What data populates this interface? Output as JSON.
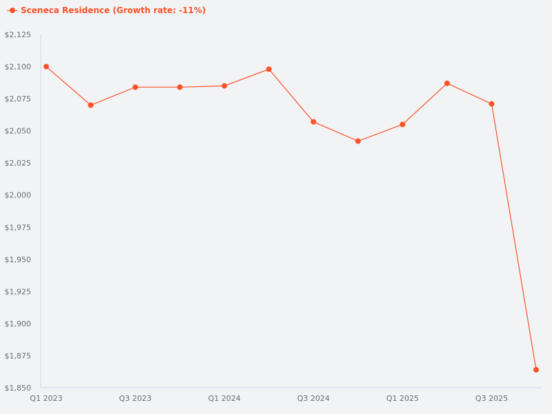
{
  "colors": {
    "series": "#fc5228",
    "axis": "#c9d5e8",
    "tick_text": "#6b6b6b",
    "background": "#f2f3f5"
  },
  "legend": {
    "label": "Sceneca Residence (Growth rate: -11%)"
  },
  "chart_data": {
    "type": "line",
    "title": "",
    "xlabel": "",
    "ylabel": "",
    "ylim": [
      1850,
      2125
    ],
    "y_ticks": [
      "$2,125",
      "$2,100",
      "$2,075",
      "$2,050",
      "$2,025",
      "$2,000",
      "$1,975",
      "$1,950",
      "$1,925",
      "$1,900",
      "$1,875",
      "$1,850"
    ],
    "y_tick_values": [
      2125,
      2100,
      2075,
      2050,
      2025,
      2000,
      1975,
      1950,
      1925,
      1900,
      1875,
      1850
    ],
    "categories": [
      "Q1 2023",
      "Q2 2023",
      "Q3 2023",
      "Q4 2023",
      "Q1 2024",
      "Q2 2024",
      "Q3 2024",
      "Q4 2024",
      "Q1 2025",
      "Q2 2025",
      "Q3 2025",
      "Q4 2025"
    ],
    "x_tick_labels": [
      "Q1 2023",
      "",
      "Q3 2023",
      "",
      "Q1 2024",
      "",
      "Q3 2024",
      "",
      "Q1 2025",
      "",
      "Q3 2025",
      ""
    ],
    "series": [
      {
        "name": "Sceneca Residence (Growth rate: -11%)",
        "values": [
          2100,
          2070,
          2084,
          2084,
          2085,
          2098,
          2057,
          2042,
          2055,
          2087,
          2071,
          1864
        ]
      }
    ],
    "grid": false,
    "legend_position": "top-left"
  }
}
